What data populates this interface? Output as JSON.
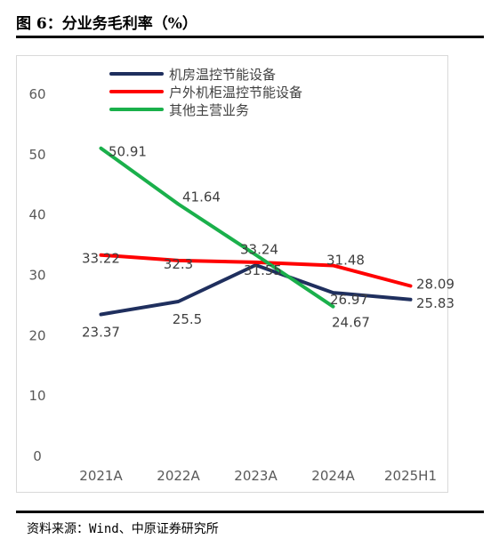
{
  "figure": {
    "title": "图 6：分业务毛利率（%）",
    "source": "资料来源：Wind、中原证券研究所"
  },
  "chart_data": {
    "type": "line",
    "title": "",
    "xlabel": "",
    "ylabel": "",
    "categories": [
      "2021A",
      "2022A",
      "2023A",
      "2024A",
      "2025H1"
    ],
    "ylim": [
      0,
      60
    ],
    "yticks": [
      "0",
      "10",
      "20",
      "30",
      "40",
      "50",
      "60"
    ],
    "grid": false,
    "legend_position": "top-center",
    "series": [
      {
        "name": "机房温控节能设备",
        "color": "#1f2f5e",
        "values": [
          23.37,
          25.5,
          31.55,
          26.97,
          25.83
        ],
        "labels": [
          "23.37",
          "25.5",
          "31.55",
          "26.97",
          "25.83"
        ]
      },
      {
        "name": "户外机柜温控节能设备",
        "color": "#ff0000",
        "values": [
          33.22,
          32.3,
          32.0,
          31.48,
          28.09
        ],
        "labels": [
          "33.22",
          "32.3",
          "",
          "31.48",
          "28.09"
        ]
      },
      {
        "name": "其他主营业务",
        "color": "#1ab04b",
        "values": [
          50.91,
          41.64,
          33.24,
          24.67,
          null
        ],
        "labels": [
          "50.91",
          "41.64",
          "33.24",
          "24.67",
          ""
        ]
      }
    ]
  }
}
